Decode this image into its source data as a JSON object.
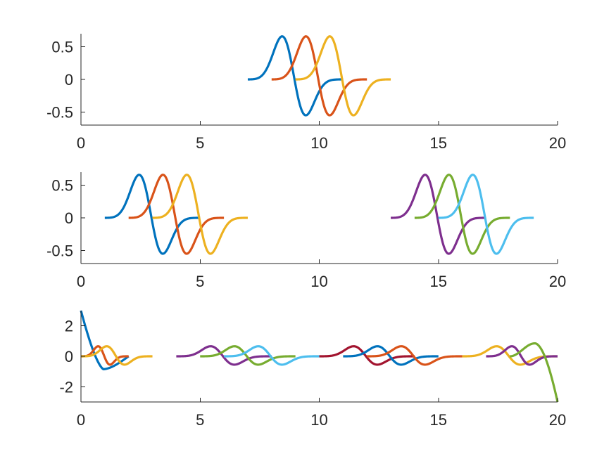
{
  "chart_data": [
    {
      "type": "line",
      "title": "",
      "xlabel": "",
      "ylabel": "",
      "xlim": [
        0,
        20
      ],
      "ylim": [
        -0.7,
        0.7
      ],
      "xticks": [
        0,
        5,
        10,
        15,
        20
      ],
      "xtick_labels": [
        "0",
        "5",
        "10",
        "15",
        "20"
      ],
      "yticks": [
        -0.5,
        0,
        0.5
      ],
      "ytick_labels": [
        "-0.5",
        "0",
        "0.5"
      ],
      "grid": false,
      "legend": "none",
      "curve": "compact wavelet of height 0.66, width 4",
      "series": [
        {
          "color": "#0072BD",
          "x_start": 7,
          "x_end": 11,
          "mirror": false
        },
        {
          "color": "#D95319",
          "x_start": 8,
          "x_end": 12,
          "mirror": false
        },
        {
          "color": "#EDB120",
          "x_start": 9,
          "x_end": 13,
          "mirror": false
        }
      ]
    },
    {
      "type": "line",
      "title": "",
      "xlabel": "",
      "ylabel": "",
      "xlim": [
        0,
        20
      ],
      "ylim": [
        -0.7,
        0.7
      ],
      "xticks": [
        0,
        5,
        10,
        15,
        20
      ],
      "xtick_labels": [
        "0",
        "5",
        "10",
        "15",
        "20"
      ],
      "yticks": [
        -0.5,
        0,
        0.5
      ],
      "ytick_labels": [
        "-0.5",
        "0",
        "0.5"
      ],
      "grid": false,
      "legend": "none",
      "curve": "compact wavelet of height 0.66, width 4",
      "series": [
        {
          "color": "#0072BD",
          "x_start": 1,
          "x_end": 5,
          "mirror": false
        },
        {
          "color": "#D95319",
          "x_start": 2,
          "x_end": 6,
          "mirror": false
        },
        {
          "color": "#EDB120",
          "x_start": 3,
          "x_end": 7,
          "mirror": false
        },
        {
          "color": "#7E2F8E",
          "x_start": 13,
          "x_end": 17,
          "mirror": false
        },
        {
          "color": "#77AC30",
          "x_start": 14,
          "x_end": 18,
          "mirror": false
        },
        {
          "color": "#4DBEEE",
          "x_start": 15,
          "x_end": 19,
          "mirror": false
        }
      ]
    },
    {
      "type": "line",
      "title": "",
      "xlabel": "",
      "ylabel": "",
      "xlim": [
        0,
        20
      ],
      "ylim": [
        -3,
        3
      ],
      "xticks": [
        0,
        5,
        10,
        15,
        20
      ],
      "xtick_labels": [
        "0",
        "5",
        "10",
        "15",
        "20"
      ],
      "yticks": [
        -2,
        0,
        2
      ],
      "ytick_labels": [
        "-2",
        "0",
        "2"
      ],
      "grid": false,
      "legend": "none",
      "curve": "compact wavelet of height 0.66, width 4; segments near the edges are boundary-modified",
      "series": [
        {
          "color": "#0072BD",
          "x_start": 0,
          "x_end": 2,
          "boundary": "left",
          "start_value": 3.0,
          "min_value": -0.85,
          "min_x": 0.95
        },
        {
          "color": "#D95319",
          "x_start": 0,
          "x_end": 2,
          "mirror": false
        },
        {
          "color": "#EDB120",
          "x_start": 0,
          "x_end": 3,
          "mirror": false
        },
        {
          "color": "#7E2F8E",
          "x_start": 4,
          "x_end": 8,
          "mirror": false
        },
        {
          "color": "#77AC30",
          "x_start": 5,
          "x_end": 9,
          "mirror": false
        },
        {
          "color": "#4DBEEE",
          "x_start": 6,
          "x_end": 10,
          "mirror": false
        },
        {
          "color": "#A2142F",
          "x_start": 10,
          "x_end": 14,
          "mirror": false
        },
        {
          "color": "#0072BD",
          "x_start": 11,
          "x_end": 15,
          "mirror": false
        },
        {
          "color": "#D95319",
          "x_start": 12,
          "x_end": 16,
          "mirror": false
        },
        {
          "color": "#EDB120",
          "x_start": 16,
          "x_end": 20,
          "mirror": false
        },
        {
          "color": "#7E2F8E",
          "x_start": 17,
          "x_end": 20,
          "mirror": false
        },
        {
          "color": "#77AC30",
          "x_start": 18,
          "x_end": 20,
          "boundary": "right",
          "peak_value": 0.85,
          "peak_x": 19.05,
          "end_value": -3.0
        }
      ]
    }
  ]
}
